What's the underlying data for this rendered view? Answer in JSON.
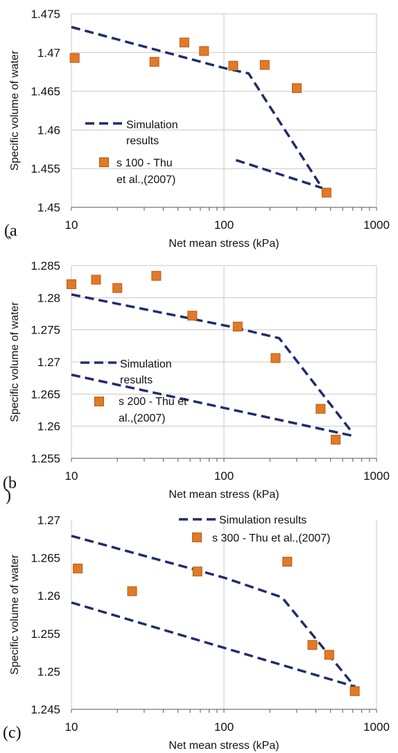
{
  "colors": {
    "simulation": "#1f2d6b",
    "experiment_fill": "#e07a28",
    "experiment_stroke": "#b85a14",
    "grid": "#c8c8c8"
  },
  "chart_data": [
    {
      "panel_label": "(a",
      "panel_label_extra": "`",
      "type": "scatter",
      "xscale": "log",
      "xlim": [
        10,
        1000
      ],
      "ylim": [
        1.45,
        1.475
      ],
      "xticks": [
        "10",
        "100",
        "1000"
      ],
      "yticks": [
        "1.45",
        "1.455",
        "1.46",
        "1.465",
        "1.47",
        "1.475"
      ],
      "xlabel": "Net mean stress (kPa)",
      "ylabel": "Specific volume of water",
      "grid": {
        "major_x": true,
        "major_y": true
      },
      "legend_position": "center-left",
      "series": [
        {
          "name_lines": [
            "Simulation",
            "results"
          ],
          "style": "dashed-line",
          "segments": [
            [
              [
                10,
                1.4733
              ],
              [
                100,
                1.468
              ],
              [
                145,
                1.4673
              ],
              [
                440,
                1.4525
              ]
            ],
            [
              [
                120,
                1.4561
              ],
              [
                440,
                1.4525
              ]
            ]
          ]
        },
        {
          "name_lines": [
            "s 100  - Thu",
            "et al.,(2007)"
          ],
          "style": "square-marker",
          "points": [
            [
              10.5,
              1.4693
            ],
            [
              35,
              1.4688
            ],
            [
              55,
              1.4713
            ],
            [
              74,
              1.4702
            ],
            [
              115,
              1.4683
            ],
            [
              185,
              1.4684
            ],
            [
              300,
              1.4654
            ],
            [
              470,
              1.4519
            ]
          ]
        }
      ]
    },
    {
      "panel_label": "(b",
      "panel_label_extra": ")",
      "type": "scatter",
      "xscale": "log",
      "xlim": [
        10,
        1000
      ],
      "ylim": [
        1.255,
        1.285
      ],
      "xticks": [
        "10",
        "100",
        "1000"
      ],
      "yticks": [
        "1.255",
        "1.26",
        "1.265",
        "1.27",
        "1.275",
        "1.28",
        "1.285"
      ],
      "xlabel": "Net mean stress (kPa)",
      "ylabel": "Specific volume of water",
      "grid": {
        "major_x": true,
        "major_y": true
      },
      "legend_position": "center-left",
      "series": [
        {
          "name_lines": [
            "Simulation",
            "results"
          ],
          "style": "dashed-line",
          "segments": [
            [
              [
                10,
                1.2805
              ],
              [
                110,
                1.2755
              ],
              [
                230,
                1.2737
              ],
              [
                700,
                1.2589
              ]
            ],
            [
              [
                10,
                1.268
              ],
              [
                700,
                1.2585
              ]
            ]
          ]
        },
        {
          "name_lines": [
            "s 200  - Thu et",
            "al.,(2007)"
          ],
          "style": "square-marker",
          "points": [
            [
              10,
              1.2821
            ],
            [
              14.5,
              1.2828
            ],
            [
              20,
              1.2815
            ],
            [
              36,
              1.2834
            ],
            [
              62,
              1.2772
            ],
            [
              123,
              1.2755
            ],
            [
              218,
              1.2706
            ],
            [
              430,
              1.2627
            ],
            [
              540,
              1.2579
            ]
          ]
        }
      ]
    },
    {
      "panel_label": "(c)",
      "type": "scatter",
      "xscale": "log",
      "xlim": [
        10,
        1000
      ],
      "ylim": [
        1.245,
        1.27
      ],
      "xticks": [
        "10",
        "100",
        "1000"
      ],
      "yticks": [
        "1.245",
        "1.25",
        "1.255",
        "1.26",
        "1.265",
        "1.27"
      ],
      "xlabel": "Net mean stress (kPa)",
      "ylabel": "Specific volume of water",
      "grid": {
        "major_x": true,
        "major_y": false
      },
      "legend_position": "top-right",
      "series": [
        {
          "name": "Simulation results",
          "style": "dashed-line",
          "segments": [
            [
              [
                10,
                1.2679
              ],
              [
                100,
                1.2624
              ],
              [
                240,
                1.2598
              ],
              [
                720,
                1.248
              ]
            ],
            [
              [
                10,
                1.2591
              ],
              [
                720,
                1.248
              ]
            ]
          ]
        },
        {
          "name": "s 300  - Thu et al.,(2007)",
          "style": "square-marker",
          "points": [
            [
              11,
              1.2636
            ],
            [
              25,
              1.2606
            ],
            [
              67,
              1.2632
            ],
            [
              260,
              1.2645
            ],
            [
              380,
              1.2535
            ],
            [
              490,
              1.2522
            ],
            [
              720,
              1.2474
            ]
          ]
        }
      ]
    }
  ]
}
